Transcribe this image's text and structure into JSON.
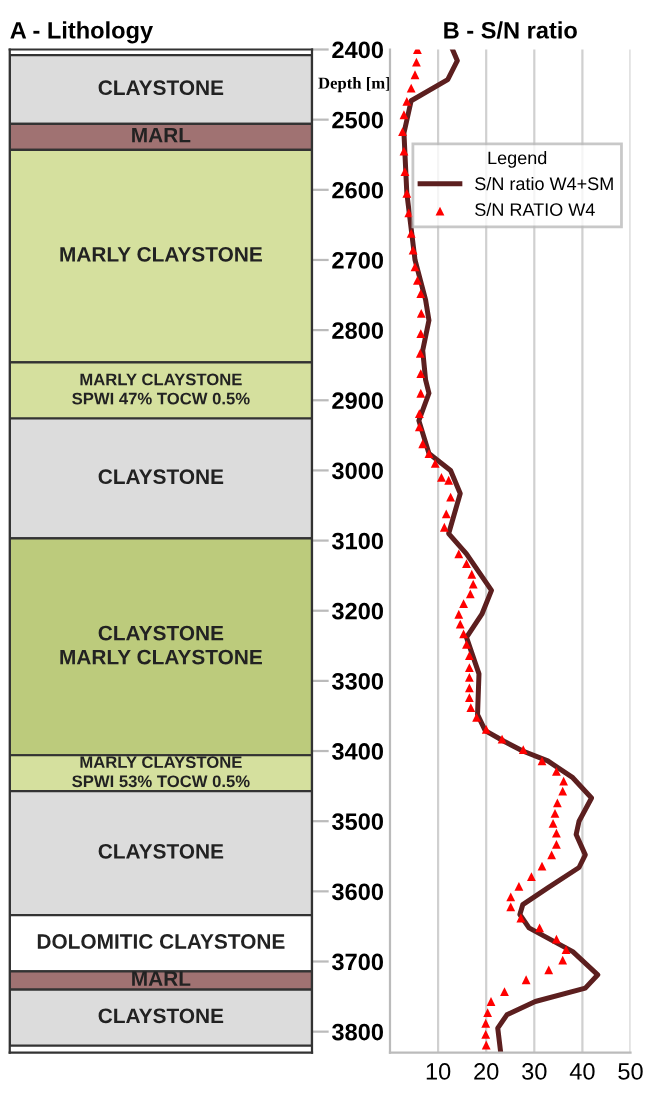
{
  "chart_data": [
    {
      "type": "bar",
      "title": "A - Lithology",
      "ylabel": "Depth [m]",
      "ylim": [
        3830,
        2400
      ],
      "yticks": [
        2400,
        2500,
        2600,
        2700,
        2800,
        2900,
        3000,
        3100,
        3200,
        3300,
        3400,
        3500,
        3600,
        3700,
        3800
      ],
      "categories": [
        null
      ],
      "bands": [
        {
          "axis": "y",
          "from": 2408,
          "to": 2506,
          "label": "CLAYSTONE",
          "color": "#dcdcdc"
        },
        {
          "axis": "y",
          "from": 2506,
          "to": 2543,
          "label": "MARL",
          "color": "#a07272"
        },
        {
          "axis": "y",
          "from": 2543,
          "to": 2846,
          "label": "MARLY CLAYSTONE",
          "color": "#d5e09e"
        },
        {
          "axis": "y",
          "from": 2846,
          "to": 2926,
          "label": "MARLY CLAYSTONE\nSPWI 47% TOCW 0.5%",
          "color": "#d5e09e"
        },
        {
          "axis": "y",
          "from": 2926,
          "to": 3097,
          "label": "CLAYSTONE",
          "color": "#dcdcdc"
        },
        {
          "axis": "y",
          "from": 3097,
          "to": 3406,
          "label": "CLAYSTONE\nMARLY CLAYSTONE",
          "color": "#bccb7c"
        },
        {
          "axis": "y",
          "from": 3406,
          "to": 3457,
          "label": "MARLY CLAYSTONE\nSPWI 53% TOCW 0.5%",
          "color": "#d5e09e"
        },
        {
          "axis": "y",
          "from": 3457,
          "to": 3634,
          "label": "CLAYSTONE",
          "color": "#dcdcdc"
        },
        {
          "axis": "y",
          "from": 3634,
          "to": 3714,
          "label": "DOLOMITIC CLAYSTONE",
          "color": "#ffffff"
        },
        {
          "axis": "y",
          "from": 3714,
          "to": 3740,
          "label": "MARL",
          "color": "#a07272"
        },
        {
          "axis": "y",
          "from": 3740,
          "to": 3820,
          "label": "CLAYSTONE",
          "color": "#dcdcdc"
        }
      ]
    },
    {
      "type": "line",
      "title": "B - S/N ratio",
      "legend_title": "Legend",
      "legend": "top right",
      "grid": "x",
      "tick_labels": "x",
      "xlim": [
        0,
        50
      ],
      "xticks": [
        10,
        20,
        30,
        40,
        50
      ],
      "ylim": [
        3830,
        2400
      ],
      "series": [
        {
          "name": "S/N ratio W4+SM",
          "color": "#5c1f1f",
          "marker": "none",
          "line_style": "solid",
          "x": [
            13,
            14,
            12,
            4.4,
            2.9,
            3.5,
            5.2,
            7.4,
            8.1,
            6.8,
            7.4,
            8.1,
            6.0,
            8.1,
            12.6,
            14.6,
            12.2,
            15.9,
            21.1,
            19.1,
            15.9,
            18.5,
            18.2,
            19.8,
            23.7,
            27.6,
            32.8,
            38,
            41.9,
            39.3,
            38.7,
            40.6,
            39.3,
            32.8,
            27.6,
            27,
            28.9,
            38,
            43.2,
            40.6,
            30.2,
            24.3,
            22.4,
            23
          ],
          "values": [
            2400,
            2416,
            2443,
            2473,
            2519,
            2605,
            2700,
            2757,
            2786,
            2829,
            2871,
            2890,
            2929,
            2976,
            3000,
            3033,
            3090,
            3119,
            3171,
            3205,
            3238,
            3290,
            3348,
            3371,
            3386,
            3400,
            3414,
            3438,
            3467,
            3500,
            3519,
            3548,
            3566,
            3595,
            3619,
            3633,
            3652,
            3686,
            3719,
            3738,
            3757,
            3776,
            3795,
            3829
          ]
        },
        {
          "name": "S/N RATIO W4",
          "type": "scatter",
          "color": "#ff0000",
          "marker": "triangle",
          "x": [
            5.7,
            5.5,
            5.2,
            4.4,
            3.5,
            2.9,
            2.6,
            2.9,
            3.1,
            3.5,
            3.9,
            4.4,
            4.8,
            5.2,
            5.7,
            6.4,
            6.5,
            6.4,
            6.3,
            6.4,
            6.4,
            6.1,
            6.1,
            6.8,
            8.1,
            9.4,
            10.7,
            12.2,
            12.6,
            11.7,
            11.3,
            14.3,
            15.9,
            17,
            17.3,
            16.7,
            15.3,
            14.3,
            14.6,
            15.3,
            15.9,
            16.5,
            16.5,
            16.5,
            16.5,
            16.5,
            16.8,
            18,
            20,
            23.3,
            27.7,
            31.6,
            34.6,
            36.1,
            35.9,
            34.8,
            34.3,
            33.9,
            34.6,
            34.6,
            33.6,
            31.6,
            29.4,
            26.8,
            25.1,
            25.1,
            27.2,
            31.1,
            34.6,
            36.6,
            35.9,
            33,
            28.3,
            23.8,
            21,
            20.3,
            19.9,
            19.9,
            20
          ],
          "values": [
            2400,
            2418,
            2436,
            2455,
            2474,
            2493,
            2517,
            2545,
            2574,
            2605,
            2633,
            2662,
            2686,
            2710,
            2729,
            2748,
            2776,
            2805,
            2833,
            2862,
            2890,
            2919,
            2938,
            2962,
            2976,
            2990,
            3010,
            3014,
            3038,
            3062,
            3081,
            3119,
            3133,
            3148,
            3162,
            3176,
            3190,
            3205,
            3219,
            3233,
            3248,
            3264,
            3281,
            3295,
            3310,
            3324,
            3338,
            3352,
            3369,
            3383,
            3398,
            3414,
            3429,
            3443,
            3457,
            3474,
            3489,
            3503,
            3517,
            3533,
            3548,
            3564,
            3579,
            3593,
            3608,
            3622,
            3638,
            3652,
            3668,
            3683,
            3698,
            3712,
            3726,
            3743,
            3757,
            3773,
            3788,
            3804,
            3819
          ]
        }
      ]
    }
  ]
}
